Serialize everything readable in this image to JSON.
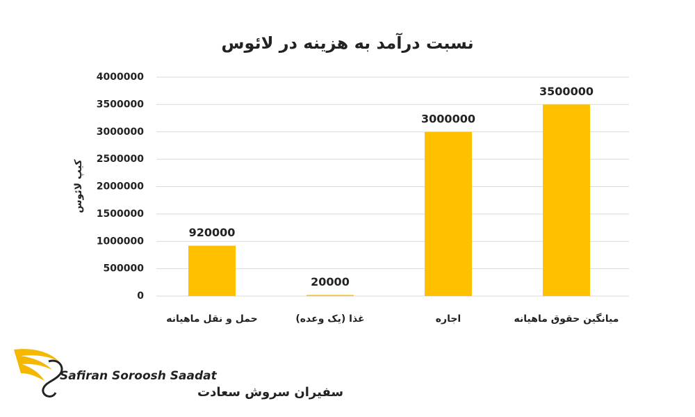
{
  "chart_data": {
    "type": "bar",
    "title": "نسبت درآمد به هزینه در لائوس",
    "y_label": "کیپ لائوس",
    "categories": [
      "حمل و نقل ماهیانه",
      "غذا (یک وعده)",
      "اجاره",
      "میانگین حقوق ماهیانه"
    ],
    "values": [
      920000,
      20000,
      3000000,
      3500000
    ],
    "color": "#ffc000",
    "ylim": [
      0,
      4000000
    ],
    "yticks": [
      0,
      500000,
      1000000,
      1500000,
      2000000,
      2500000,
      3000000,
      3500000,
      4000000
    ],
    "grid": true
  },
  "logo": {
    "latin": "Safiran Soroosh Saadat",
    "persian": "سفیران سروش سعادت"
  }
}
